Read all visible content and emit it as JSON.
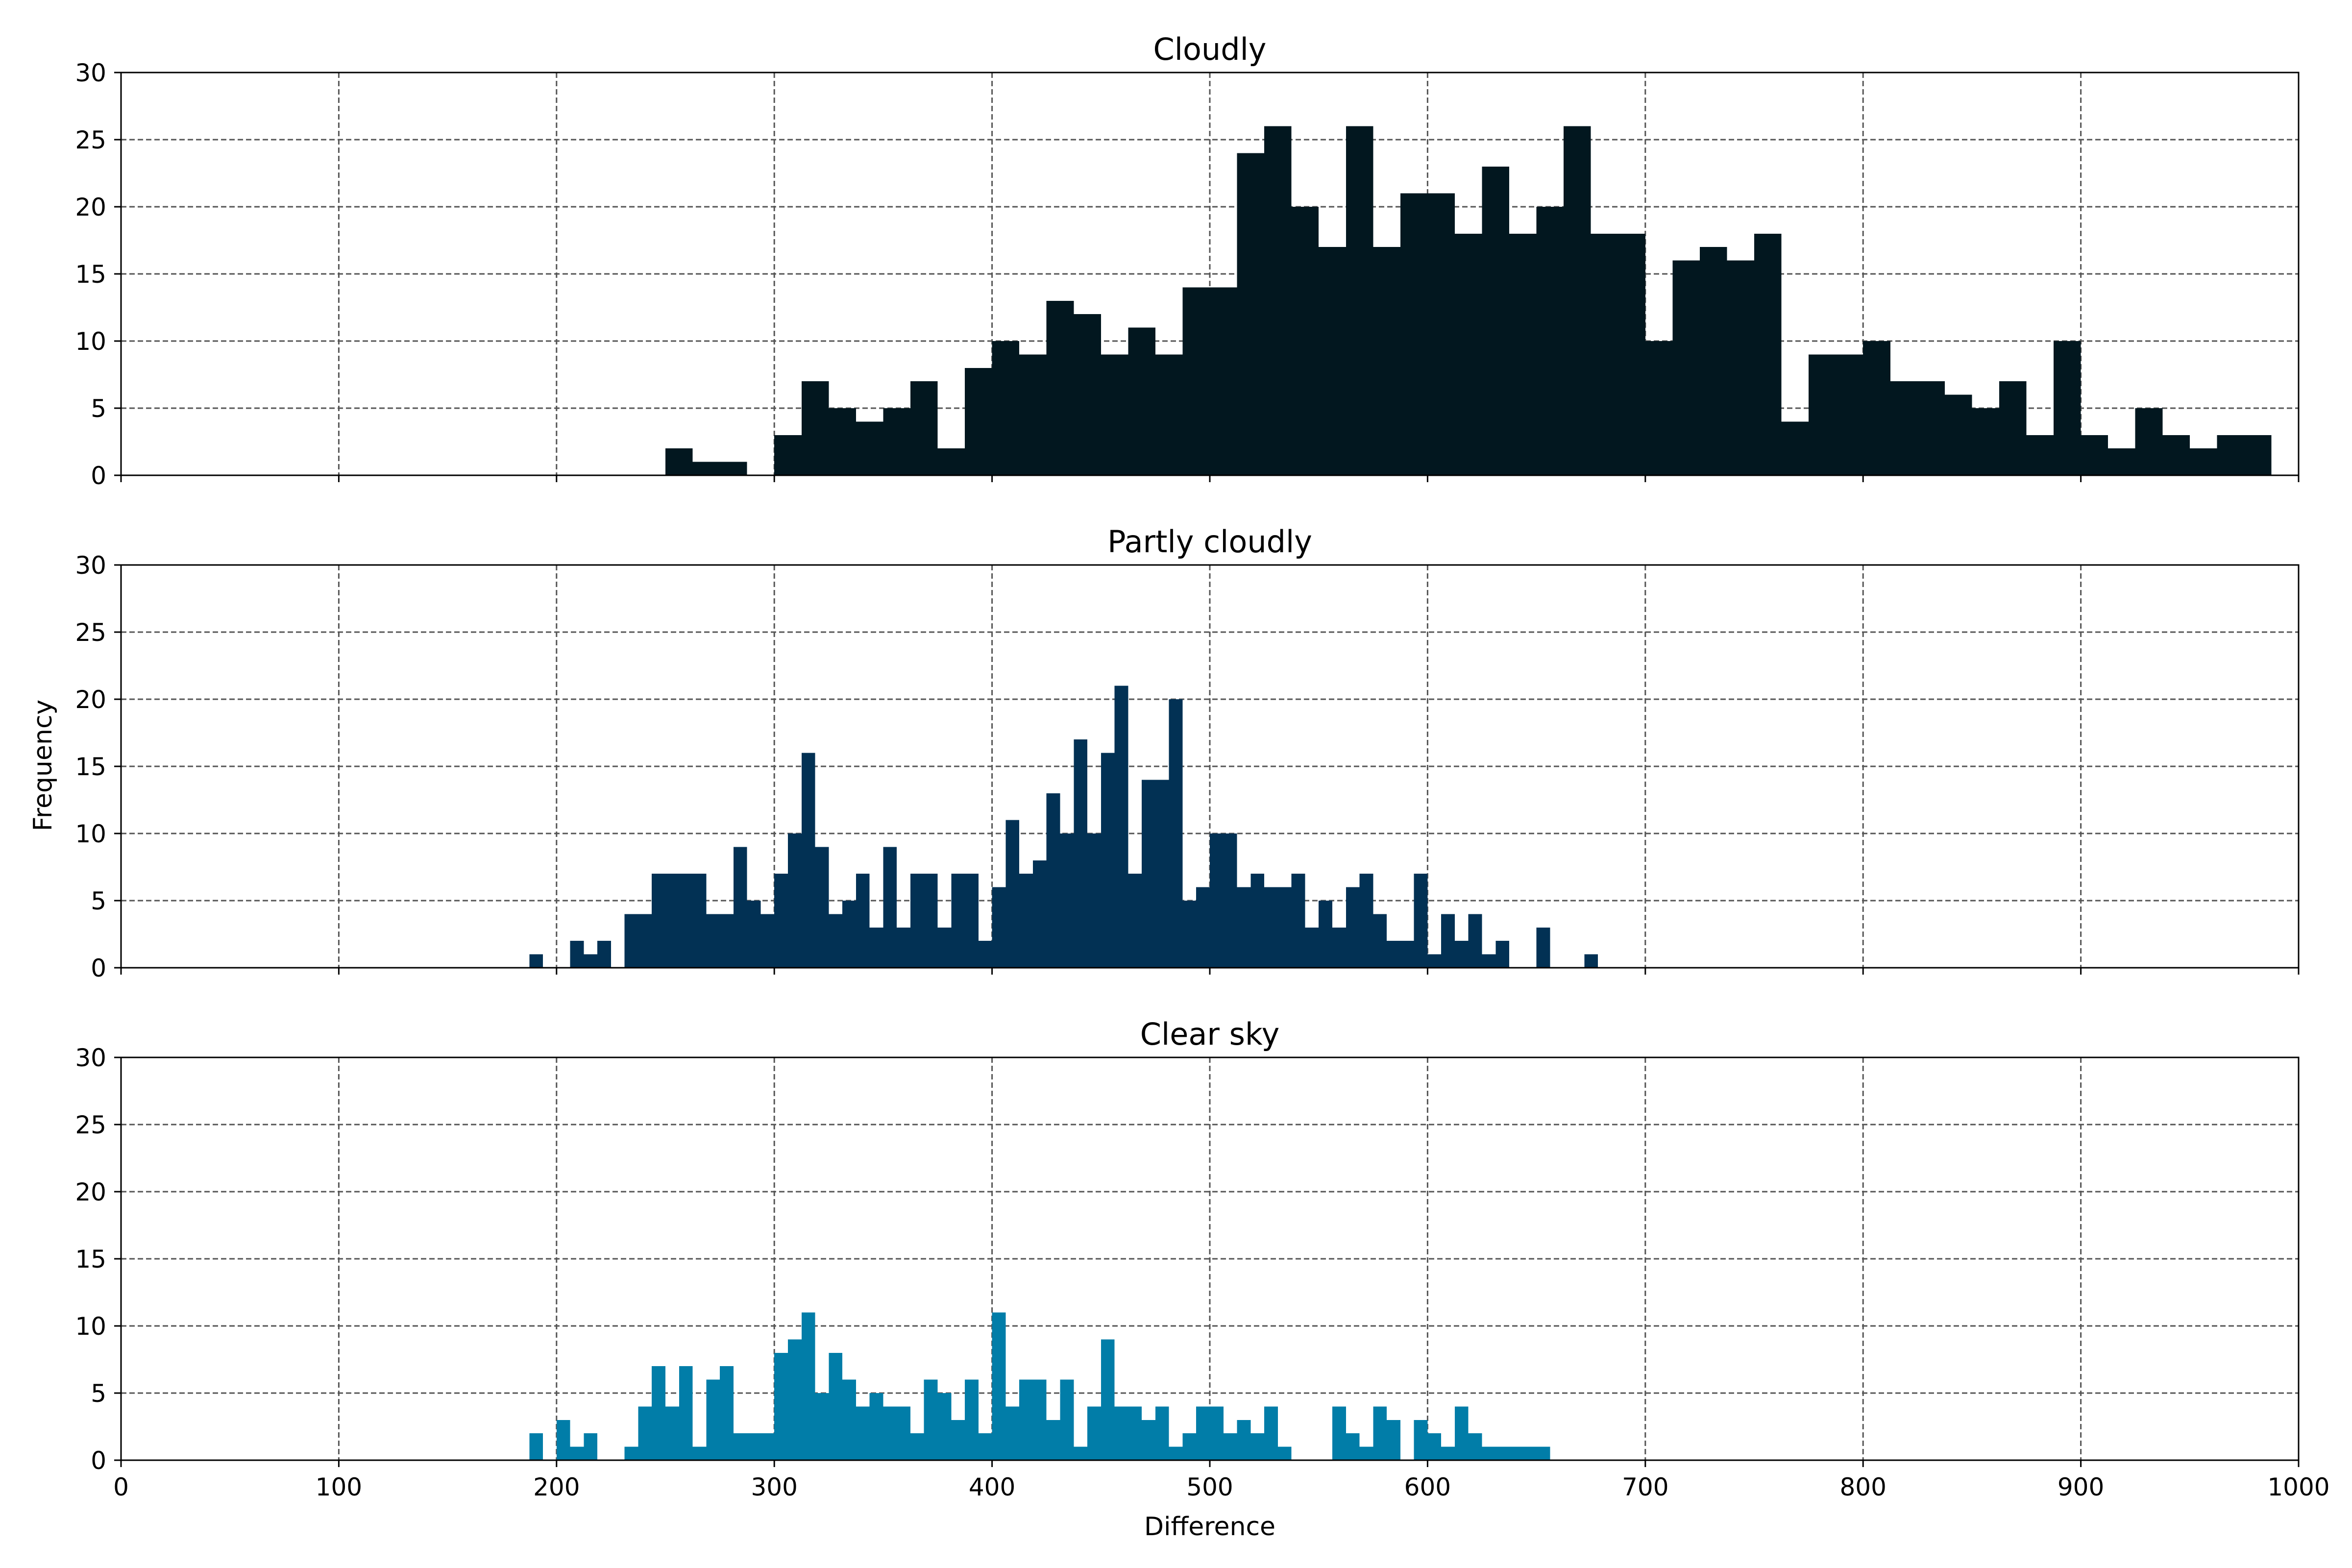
{
  "chart_data": {
    "type": "bar",
    "shared_xlabel": "Difference",
    "shared_ylabel": "Frequency",
    "xlim": [
      0,
      1000
    ],
    "ylim": [
      0,
      30
    ],
    "x_ticks": [
      0,
      100,
      200,
      300,
      400,
      500,
      600,
      700,
      800,
      900,
      1000
    ],
    "y_ticks": [
      0,
      5,
      10,
      15,
      20,
      25,
      30
    ],
    "grid": true,
    "panels": [
      {
        "title": "Cloudly",
        "color": "#02171f",
        "bin_width": 12.5,
        "bins": [
          [
            250,
            2
          ],
          [
            262.5,
            1
          ],
          [
            275,
            1
          ],
          [
            300,
            3
          ],
          [
            312.5,
            7
          ],
          [
            325,
            5
          ],
          [
            337.5,
            4
          ],
          [
            350,
            5
          ],
          [
            362.5,
            7
          ],
          [
            375,
            2
          ],
          [
            387.5,
            8
          ],
          [
            400,
            10
          ],
          [
            412.5,
            9
          ],
          [
            425,
            13
          ],
          [
            437.5,
            12
          ],
          [
            450,
            9
          ],
          [
            462.5,
            11
          ],
          [
            475,
            9
          ],
          [
            487.5,
            14
          ],
          [
            500,
            14
          ],
          [
            512.5,
            24
          ],
          [
            525,
            26
          ],
          [
            537.5,
            20
          ],
          [
            550,
            17
          ],
          [
            562.5,
            26
          ],
          [
            575,
            17
          ],
          [
            587.5,
            21
          ],
          [
            600,
            21
          ],
          [
            612.5,
            18
          ],
          [
            625,
            23
          ],
          [
            637.5,
            18
          ],
          [
            650,
            20
          ],
          [
            662.5,
            26
          ],
          [
            675,
            18
          ],
          [
            687.5,
            18
          ],
          [
            700,
            10
          ],
          [
            712.5,
            16
          ],
          [
            725,
            17
          ],
          [
            737.5,
            16
          ],
          [
            750,
            18
          ],
          [
            762.5,
            4
          ],
          [
            775,
            9
          ],
          [
            787.5,
            9
          ],
          [
            800,
            10
          ],
          [
            812.5,
            7
          ],
          [
            825,
            7
          ],
          [
            837.5,
            6
          ],
          [
            850,
            5
          ],
          [
            862.5,
            7
          ],
          [
            875,
            3
          ],
          [
            887.5,
            10
          ],
          [
            900,
            3
          ],
          [
            912.5,
            2
          ],
          [
            925,
            5
          ],
          [
            937.5,
            3
          ],
          [
            950,
            2
          ],
          [
            962.5,
            3
          ],
          [
            975,
            3
          ]
        ]
      },
      {
        "title": "Partly cloudly",
        "color": "#023154",
        "bin_width": 6.25,
        "bins": [
          [
            187.5,
            1
          ],
          [
            206.25,
            2
          ],
          [
            212.5,
            1
          ],
          [
            218.75,
            2
          ],
          [
            231.25,
            4
          ],
          [
            237.5,
            4
          ],
          [
            243.75,
            7
          ],
          [
            250,
            7
          ],
          [
            256.25,
            7
          ],
          [
            262.5,
            7
          ],
          [
            268.75,
            4
          ],
          [
            275,
            4
          ],
          [
            281.25,
            9
          ],
          [
            287.5,
            5
          ],
          [
            293.75,
            4
          ],
          [
            300,
            7
          ],
          [
            306.25,
            10
          ],
          [
            312.5,
            16
          ],
          [
            318.75,
            9
          ],
          [
            325,
            4
          ],
          [
            331.25,
            5
          ],
          [
            337.5,
            7
          ],
          [
            343.75,
            3
          ],
          [
            350,
            9
          ],
          [
            356.25,
            3
          ],
          [
            362.5,
            7
          ],
          [
            368.75,
            7
          ],
          [
            375,
            3
          ],
          [
            381.25,
            7
          ],
          [
            387.5,
            7
          ],
          [
            393.75,
            2
          ],
          [
            400,
            6
          ],
          [
            406.25,
            11
          ],
          [
            412.5,
            7
          ],
          [
            418.75,
            8
          ],
          [
            425,
            13
          ],
          [
            431.25,
            10
          ],
          [
            437.5,
            17
          ],
          [
            443.75,
            10
          ],
          [
            450,
            16
          ],
          [
            456.25,
            21
          ],
          [
            462.5,
            7
          ],
          [
            468.75,
            14
          ],
          [
            475,
            14
          ],
          [
            481.25,
            20
          ],
          [
            487.5,
            5
          ],
          [
            493.75,
            6
          ],
          [
            500,
            10
          ],
          [
            506.25,
            10
          ],
          [
            512.5,
            6
          ],
          [
            518.75,
            7
          ],
          [
            525,
            6
          ],
          [
            531.25,
            6
          ],
          [
            537.5,
            7
          ],
          [
            543.75,
            3
          ],
          [
            550,
            5
          ],
          [
            556.25,
            3
          ],
          [
            562.5,
            6
          ],
          [
            568.75,
            7
          ],
          [
            575,
            4
          ],
          [
            581.25,
            2
          ],
          [
            587.5,
            2
          ],
          [
            593.75,
            7
          ],
          [
            600,
            1
          ],
          [
            606.25,
            4
          ],
          [
            612.5,
            2
          ],
          [
            618.75,
            4
          ],
          [
            625,
            1
          ],
          [
            631.25,
            2
          ],
          [
            650,
            3
          ],
          [
            672,
            1
          ]
        ]
      },
      {
        "title": "Clear sky",
        "color": "#017da8",
        "bin_width": 6.25,
        "bins": [
          [
            187.5,
            2
          ],
          [
            200,
            3
          ],
          [
            206.25,
            1
          ],
          [
            212.5,
            2
          ],
          [
            231.25,
            1
          ],
          [
            237.5,
            4
          ],
          [
            243.75,
            7
          ],
          [
            250,
            4
          ],
          [
            256.25,
            7
          ],
          [
            262.5,
            1
          ],
          [
            268.75,
            6
          ],
          [
            275,
            7
          ],
          [
            281.25,
            2
          ],
          [
            287.5,
            2
          ],
          [
            293.75,
            2
          ],
          [
            300,
            8
          ],
          [
            306.25,
            9
          ],
          [
            312.5,
            11
          ],
          [
            318.75,
            5
          ],
          [
            325,
            8
          ],
          [
            331.25,
            6
          ],
          [
            337.5,
            4
          ],
          [
            343.75,
            5
          ],
          [
            350,
            4
          ],
          [
            356.25,
            4
          ],
          [
            362.5,
            2
          ],
          [
            368.75,
            6
          ],
          [
            375,
            5
          ],
          [
            381.25,
            3
          ],
          [
            387.5,
            6
          ],
          [
            393.75,
            2
          ],
          [
            400,
            11
          ],
          [
            406.25,
            4
          ],
          [
            412.5,
            6
          ],
          [
            418.75,
            6
          ],
          [
            425,
            3
          ],
          [
            431.25,
            6
          ],
          [
            437.5,
            1
          ],
          [
            443.75,
            4
          ],
          [
            450,
            9
          ],
          [
            456.25,
            4
          ],
          [
            462.5,
            4
          ],
          [
            468.75,
            3
          ],
          [
            475,
            4
          ],
          [
            481.25,
            1
          ],
          [
            487.5,
            2
          ],
          [
            493.75,
            4
          ],
          [
            500,
            4
          ],
          [
            506.25,
            2
          ],
          [
            512.5,
            3
          ],
          [
            518.75,
            2
          ],
          [
            525,
            4
          ],
          [
            531.25,
            1
          ],
          [
            556.25,
            4
          ],
          [
            562.5,
            2
          ],
          [
            568.75,
            1
          ],
          [
            575,
            4
          ],
          [
            581.25,
            3
          ],
          [
            593.75,
            3
          ],
          [
            600,
            2
          ],
          [
            606.25,
            1
          ],
          [
            612.5,
            4
          ],
          [
            618.75,
            2
          ],
          [
            625,
            1
          ],
          [
            631.25,
            1
          ],
          [
            637.5,
            1
          ],
          [
            643.75,
            1
          ],
          [
            650,
            1
          ]
        ]
      }
    ]
  }
}
